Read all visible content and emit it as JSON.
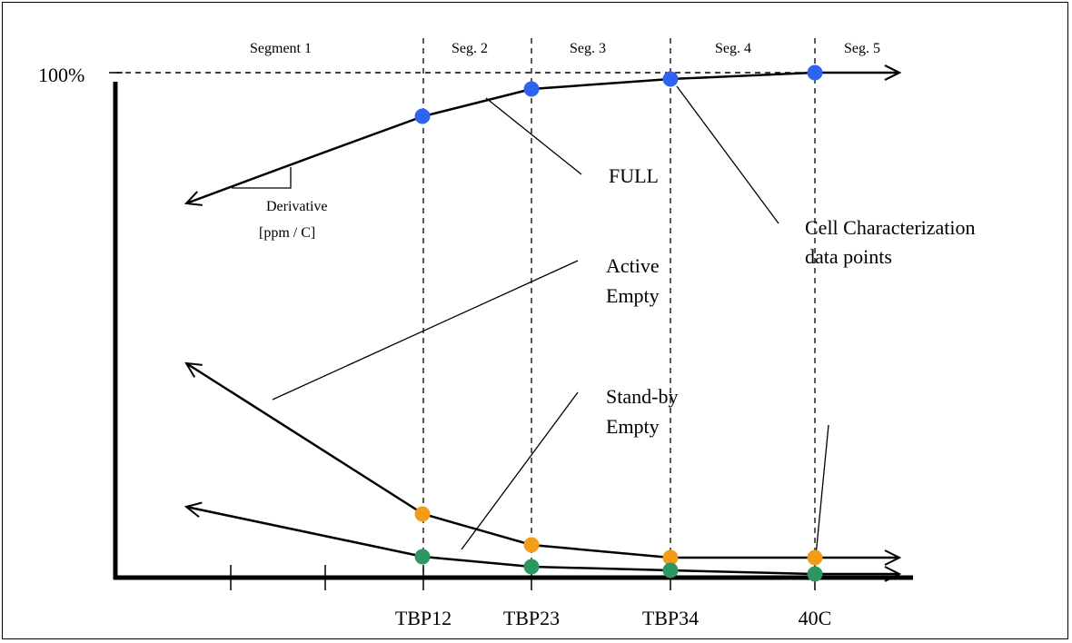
{
  "y_axis": {
    "top_label": "100%"
  },
  "x_axis": {
    "tick_labels": [
      "TBP12",
      "TBP23",
      "TBP34",
      "40C"
    ]
  },
  "segments": [
    "Segment 1",
    "Seg. 2",
    "Seg. 3",
    "Seg. 4",
    "Seg. 5"
  ],
  "annotations": {
    "derivative_line1": "Derivative",
    "derivative_line2": "[ppm / C]",
    "full": "FULL",
    "active_line1": "Active",
    "active_line2": "Empty",
    "standby_line1": "Stand-by",
    "standby_line2": "Empty",
    "cell_line1": "Cell Characterization",
    "cell_line2": "data points"
  },
  "curves": [
    {
      "name": "FULL",
      "point_color": "#2e64f0"
    },
    {
      "name": "Active Empty",
      "point_color": "#f39c1a"
    },
    {
      "name": "Stand-by Empty",
      "point_color": "#2e9660"
    }
  ]
}
